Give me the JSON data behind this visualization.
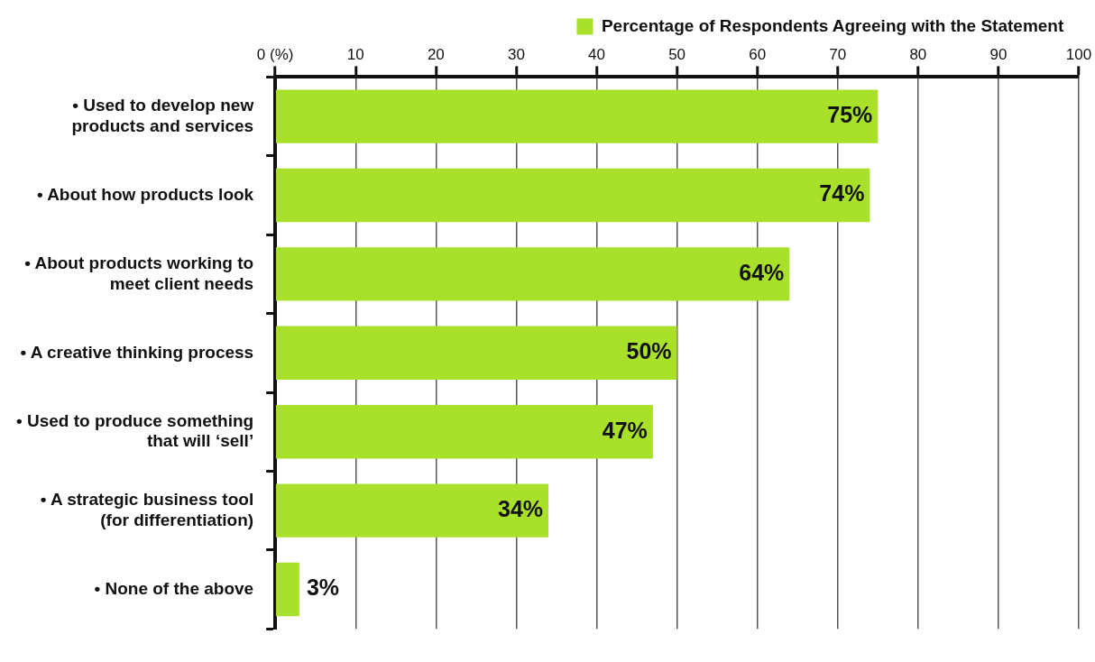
{
  "chart_data": {
    "type": "bar",
    "orientation": "horizontal",
    "categories": [
      "• Used to develop new products and services",
      "• About how products look",
      "• About products working to meet client needs",
      "• A creative thinking process",
      "• Used to produce something that will ‘sell’",
      "• A strategic business tool (for differentiation)",
      "• None of the above"
    ],
    "series": [
      {
        "name": "Percentage of Respondents Agreeing with the Statement",
        "color": "#a8e02a",
        "values": [
          75,
          74,
          64,
          50,
          47,
          34,
          3
        ],
        "value_labels": [
          "75%",
          "74%",
          "64%",
          "50%",
          "47%",
          "34%",
          "3%"
        ]
      }
    ],
    "xlim": [
      0,
      100
    ],
    "xticks": [
      {
        "value": 0,
        "label": "0 (%)"
      },
      10,
      20,
      30,
      40,
      50,
      60,
      70,
      80,
      90,
      100
    ],
    "grid": "x",
    "legend": "top right"
  }
}
